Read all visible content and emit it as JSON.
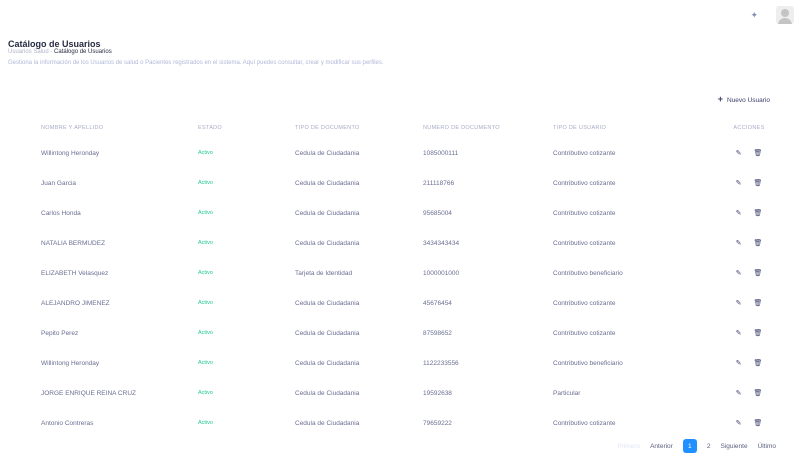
{
  "header": {
    "icons": [
      "theme-icon",
      "avatar"
    ]
  },
  "page": {
    "title": "Catálogo de Usuarios",
    "breadcrumb": [
      "Usuarios Salud",
      "Catálogo de Usuarios"
    ],
    "separator": "-",
    "description": "Gestiona la información de los Usuarios de salud o Pacientes registrados en el sistema. Aquí puedes consultar, crear y modificar sus perfiles.",
    "new_button": "Nuevo Usuario"
  },
  "table": {
    "columns": [
      "NOMBRE Y APELLIDO",
      "ESTADO",
      "TIPO DE DOCUMENTO",
      "NUMERO DE DOCUMENTO",
      "TIPO DE USUARIO",
      "ACCIONES"
    ],
    "rows": [
      [
        "Willintong Heronday",
        "Activo",
        "Cedula de Ciudadania",
        "1085000111",
        "Contributivo cotizante"
      ],
      [
        "Juan Garcia",
        "Activo",
        "Cedula de Ciudadania",
        "211118766",
        "Contributivo cotizante"
      ],
      [
        "Carlos Honda",
        "Activo",
        "Cedula de Ciudadania",
        "95685004",
        "Contributivo cotizante"
      ],
      [
        "NATALIA BERMUDEZ",
        "Activo",
        "Cedula de Ciudadania",
        "3434343434",
        "Contributivo cotizante"
      ],
      [
        "ELIZABETH Velasquez",
        "Activo",
        "Tarjeta de Identidad",
        "1000001000",
        "Contributivo beneficiario"
      ],
      [
        "ALEJANDRO JIMENEZ",
        "Activo",
        "Cedula de Ciudadania",
        "45676454",
        "Contributivo cotizante"
      ],
      [
        "Pepito Perez",
        "Activo",
        "Cedula de Ciudadania",
        "87598652",
        "Contributivo cotizante"
      ],
      [
        "Willintong Heronday",
        "Activo",
        "Cedula de Ciudadania",
        "1122233556",
        "Contributivo beneficiario"
      ],
      [
        "JORGE ENRIQUE REINA CRUZ",
        "Activo",
        "Cedula de Ciudadania",
        "19592638",
        "Particular"
      ],
      [
        "Antonio Contreras",
        "Activo",
        "Cedula de Ciudadania",
        "79659222",
        "Contributivo cotizante"
      ]
    ],
    "status_color": "#20c997"
  },
  "pagination": {
    "first": "Primero",
    "prev": "Anterior",
    "pages": [
      "1",
      "2"
    ],
    "current": "1",
    "next": "Siguiente",
    "last": "Último"
  }
}
